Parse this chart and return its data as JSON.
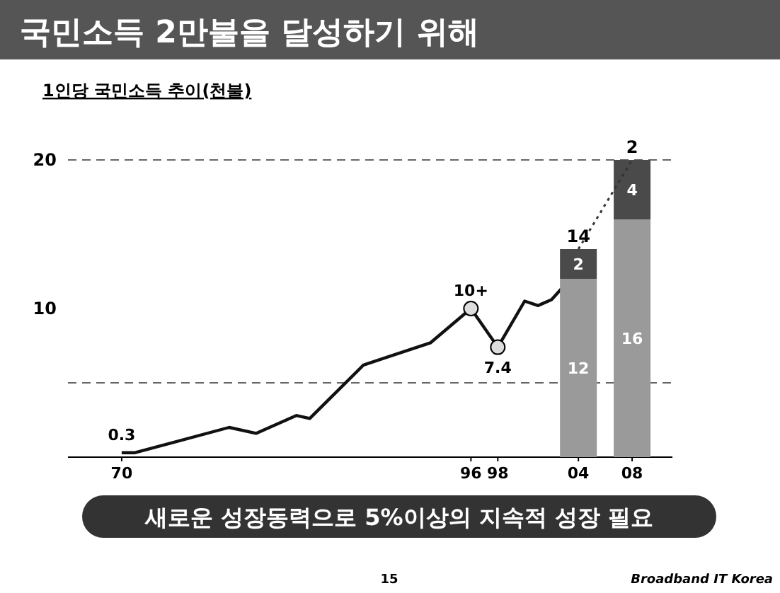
{
  "chart_data": {
    "type": "line",
    "title": "국민소득 2만불을 달성하기 위해",
    "subtitle": "1인당 국민소득 추이(천불)",
    "xlim": [
      1966,
      2011
    ],
    "xticks": [
      {
        "value": 1970,
        "label": "70"
      },
      {
        "value": 1996,
        "label": "96"
      },
      {
        "value": 1998,
        "label": "98"
      },
      {
        "value": 2004,
        "label": "04"
      },
      {
        "value": 2008,
        "label": "08"
      }
    ],
    "ylim": [
      0,
      20
    ],
    "yticks": [
      10,
      20
    ],
    "stacked": true,
    "ref_lines": [
      {
        "axis": "y",
        "value": 5,
        "label": null,
        "line_style": "dashed"
      },
      {
        "axis": "y",
        "value": 20,
        "label": null,
        "line_style": "dashed"
      }
    ],
    "series": [
      {
        "color": "#111111",
        "x": [
          1970,
          1971,
          1978,
          1980,
          1983,
          1984,
          1988,
          1993,
          1996,
          1998,
          2000,
          2001,
          2002,
          2003
        ],
        "values": [
          0.3,
          0.3,
          2.0,
          1.6,
          2.8,
          2.6,
          6.2,
          7.7,
          10,
          7.4,
          10.5,
          10.2,
          10.6,
          11.6
        ],
        "value_labels": [
          "0.3",
          null,
          null,
          null,
          null,
          null,
          null,
          null,
          null,
          null,
          null,
          null,
          null,
          null
        ]
      },
      {
        "type": "scatter",
        "color": "#dddddd",
        "marker": "circle",
        "x": [
          1996,
          1998
        ],
        "values": [
          10,
          7.4
        ],
        "value_labels": [
          "10+",
          "7.4"
        ]
      },
      {
        "type": "bar",
        "color": "#9a9a9a",
        "x": [
          2004,
          2008
        ],
        "values": [
          12,
          16
        ],
        "value_labels": [
          "12",
          "16"
        ]
      },
      {
        "type": "bar",
        "color": "#4a4a4a",
        "x": [
          2004,
          2008
        ],
        "values": [
          2,
          4
        ],
        "value_labels": [
          "2",
          "4"
        ]
      },
      {
        "color": "#333333",
        "line_style": "dotted",
        "x": [
          2004,
          2008
        ],
        "values": [
          14,
          20
        ]
      }
    ],
    "annotations": [
      {
        "text": "14",
        "x": 2004,
        "y": 14
      },
      {
        "text": "2",
        "x": 2008,
        "y": 20
      },
      "새로운 성장동력으로 5%이상의 지속적 성장 필요",
      "15",
      "Broadband IT Korea"
    ]
  }
}
